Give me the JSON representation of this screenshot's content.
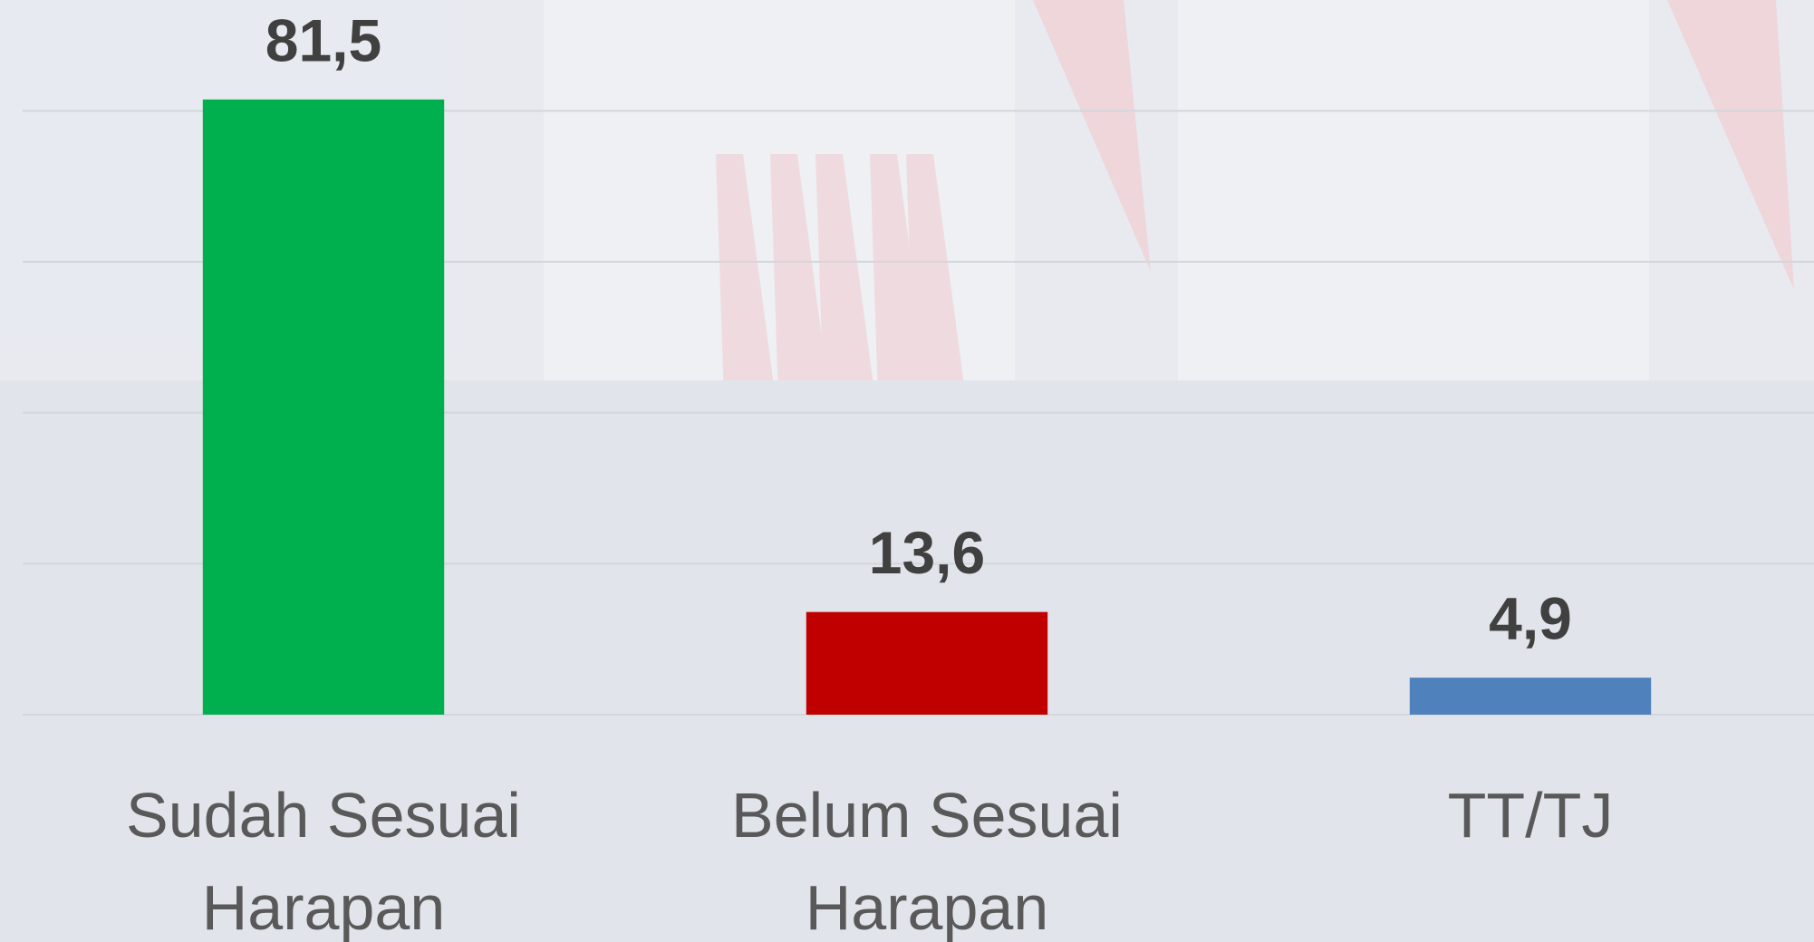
{
  "chart_data": {
    "type": "bar",
    "categories": [
      "Sudah Sesuai Harapan",
      "Belum Sesuai Harapan",
      "TT/TJ"
    ],
    "values": [
      81.5,
      13.6,
      4.9
    ],
    "value_labels": [
      "81,5",
      "13,6",
      "4,9"
    ],
    "colors": [
      "#00b04f",
      "#c00000",
      "#4f81bd"
    ],
    "ylim": [
      0,
      90
    ],
    "yticks": [
      0,
      20,
      40,
      60,
      80
    ],
    "grid": true
  }
}
